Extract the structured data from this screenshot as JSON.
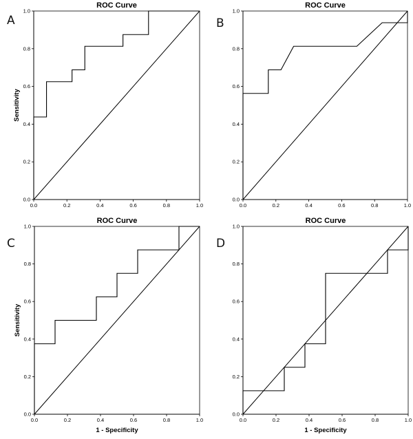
{
  "chart_data": [
    {
      "type": "line",
      "panel_label": "A",
      "title": "ROC Curve",
      "xlabel": "",
      "ylabel": "Sensitivity",
      "xlim": [
        0,
        1
      ],
      "ylim": [
        0,
        1
      ],
      "x_ticks": [
        "0.0",
        "0.2",
        "0.4",
        "0.6",
        "0.8",
        "1.0"
      ],
      "y_ticks": [
        "0.0",
        "0.2",
        "0.4",
        "0.6",
        "0.8",
        "1.0"
      ],
      "reference_line": [
        [
          0,
          0
        ],
        [
          1,
          1
        ]
      ],
      "series": [
        {
          "points": [
            [
              0,
              0
            ],
            [
              0,
              0.438
            ],
            [
              0.077,
              0.438
            ],
            [
              0.077,
              0.625
            ],
            [
              0.231,
              0.625
            ],
            [
              0.231,
              0.688
            ],
            [
              0.308,
              0.688
            ],
            [
              0.308,
              0.813
            ],
            [
              0.538,
              0.813
            ],
            [
              0.538,
              0.875
            ],
            [
              0.692,
              0.875
            ],
            [
              0.692,
              1.0
            ],
            [
              1.0,
              1.0
            ]
          ]
        }
      ]
    },
    {
      "type": "line",
      "panel_label": "B",
      "title": "ROC Curve",
      "xlabel": "",
      "ylabel": "",
      "xlim": [
        0,
        1
      ],
      "ylim": [
        0,
        1
      ],
      "x_ticks": [
        "0.0",
        "0.2",
        "0.4",
        "0.6",
        "0.8",
        "1.0"
      ],
      "y_ticks": [
        "0.0",
        "0.2",
        "0.4",
        "0.6",
        "0.8",
        "1.0"
      ],
      "reference_line": [
        [
          0,
          0
        ],
        [
          1,
          1
        ]
      ],
      "series": [
        {
          "points": [
            [
              0,
              0
            ],
            [
              0,
              0.563
            ],
            [
              0.154,
              0.563
            ],
            [
              0.154,
              0.688
            ],
            [
              0.231,
              0.688
            ],
            [
              0.308,
              0.813
            ],
            [
              0.692,
              0.813
            ],
            [
              0.846,
              0.938
            ],
            [
              1.0,
              0.938
            ],
            [
              1.0,
              1.0
            ]
          ]
        }
      ]
    },
    {
      "type": "line",
      "panel_label": "C",
      "title": "ROC Curve",
      "xlabel": "1 - Specificity",
      "ylabel": "Sensitivity",
      "xlim": [
        0,
        1
      ],
      "ylim": [
        0,
        1
      ],
      "x_ticks": [
        "0.0",
        "0.2",
        "0.4",
        "0.6",
        "0.8",
        "1.0"
      ],
      "y_ticks": [
        "0.0",
        "0.2",
        "0.4",
        "0.6",
        "0.8",
        "1.0"
      ],
      "reference_line": [
        [
          0,
          0
        ],
        [
          1,
          1
        ]
      ],
      "series": [
        {
          "points": [
            [
              0,
              0
            ],
            [
              0,
              0.375
            ],
            [
              0.125,
              0.375
            ],
            [
              0.125,
              0.5
            ],
            [
              0.375,
              0.5
            ],
            [
              0.375,
              0.625
            ],
            [
              0.5,
              0.625
            ],
            [
              0.5,
              0.75
            ],
            [
              0.625,
              0.75
            ],
            [
              0.625,
              0.875
            ],
            [
              0.875,
              0.875
            ],
            [
              0.875,
              1.0
            ],
            [
              1.0,
              1.0
            ]
          ]
        }
      ]
    },
    {
      "type": "line",
      "panel_label": "D",
      "title": "ROC Curve",
      "xlabel": "1 - Specificity",
      "ylabel": "",
      "xlim": [
        0,
        1
      ],
      "ylim": [
        0,
        1
      ],
      "x_ticks": [
        "0.0",
        "0.2",
        "0.4",
        "0.6",
        "0.8",
        "1.0"
      ],
      "y_ticks": [
        "0.0",
        "0.2",
        "0.4",
        "0.6",
        "0.8",
        "1.0"
      ],
      "reference_line": [
        [
          0,
          0
        ],
        [
          1,
          1
        ]
      ],
      "series": [
        {
          "points": [
            [
              0,
              0
            ],
            [
              0,
              0.125
            ],
            [
              0.25,
              0.125
            ],
            [
              0.25,
              0.25
            ],
            [
              0.375,
              0.25
            ],
            [
              0.375,
              0.375
            ],
            [
              0.5,
              0.375
            ],
            [
              0.5,
              0.75
            ],
            [
              0.875,
              0.75
            ],
            [
              0.875,
              0.875
            ],
            [
              1.0,
              0.875
            ],
            [
              1.0,
              1.0
            ]
          ]
        }
      ]
    }
  ]
}
